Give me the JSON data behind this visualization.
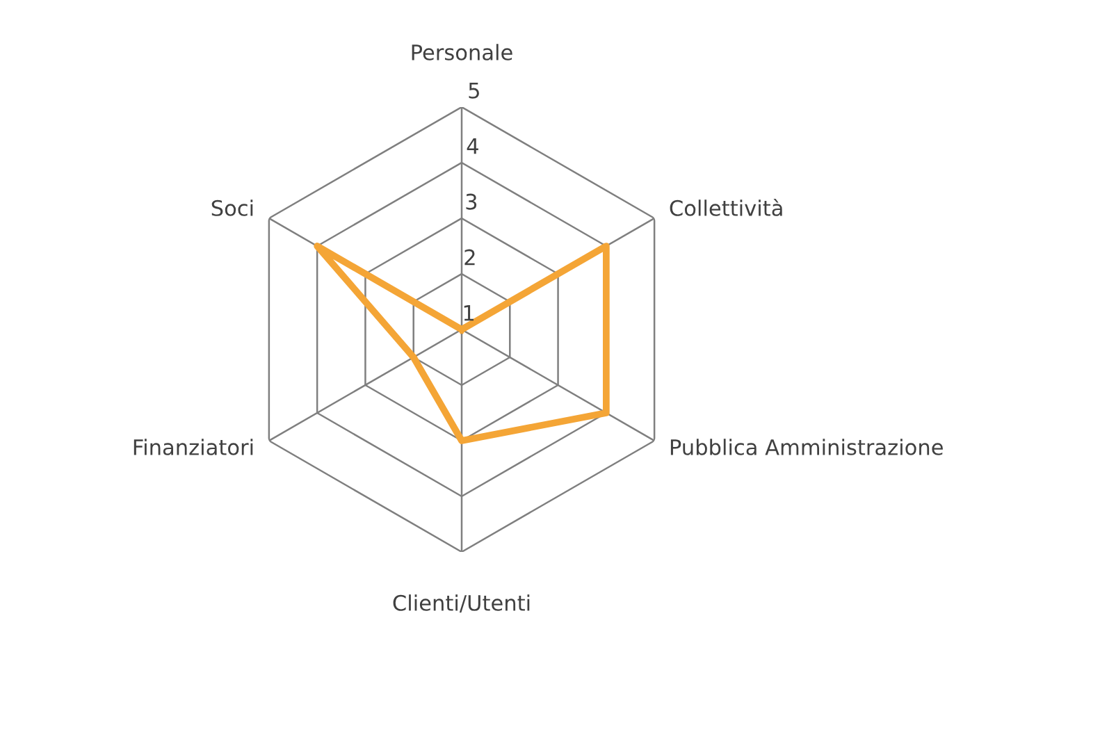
{
  "chart_data": {
    "type": "radar",
    "categories": [
      "Personale",
      "Collettività",
      "Pubblica Amministrazione",
      "Clienti/Utenti",
      "Finanziatori",
      "Soci"
    ],
    "series": [
      {
        "color": "#f4a536",
        "values": [
          1,
          4,
          4,
          3,
          2,
          4
        ]
      }
    ],
    "ylim": [
      1,
      5
    ],
    "yticks": [
      1,
      2,
      3,
      4,
      5
    ],
    "grid": true,
    "marker": "none",
    "line_style": "solid"
  }
}
